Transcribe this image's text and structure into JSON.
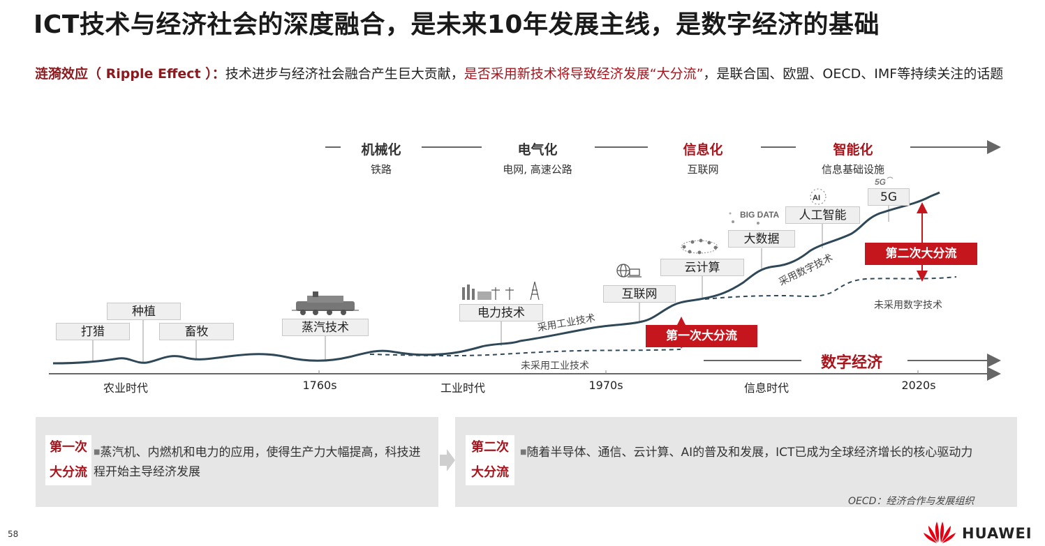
{
  "title": "ICT技术与经济社会的深度融合，是未来10年发展主线，是数字经济的基础",
  "subtitle": {
    "term": "涟漪效应（ Ripple Effect ）：",
    "text_a": "技术进步与经济社会融合产生巨大贡献，",
    "text_red": "是否采用新技术将导致经济发展“大分流”",
    "text_b": "，是联合国、欧盟、OECD、IMF等持续关注的话题"
  },
  "eras": [
    {
      "name": "机械化",
      "infra": "铁路"
    },
    {
      "name": "电气化",
      "infra": "电网, 高速公路"
    },
    {
      "name": "信息化",
      "infra": "互联网"
    },
    {
      "name": "智能化",
      "infra": "信息基础设施"
    }
  ],
  "tech_boxes": {
    "hunting": "打猎",
    "planting": "种植",
    "herding": "畜牧",
    "steam": "蒸汽技术",
    "power": "电力技术",
    "internet": "互联网",
    "cloud": "云计算",
    "bigdata": "大数据",
    "ai": "人工智能",
    "fiveg": "5G"
  },
  "icon_text": {
    "bigdata": "BIG DATA",
    "ai": "AI",
    "fiveg": "5G"
  },
  "curve_labels": {
    "adopt_industrial": "采用工业技术",
    "not_adopt_industrial": "未采用工业技术",
    "adopt_digital": "采用数字技术",
    "not_adopt_digital": "未采用数字技术"
  },
  "divergence": {
    "first": "第一次大分流",
    "second": "第二次大分流"
  },
  "digital_economy": "数字经济",
  "x_axis": [
    "农业时代",
    "1760s",
    "工业时代",
    "1970s",
    "信息时代",
    "2020s"
  ],
  "panels": [
    {
      "tag_line1": "第一次",
      "tag_line2": "大分流",
      "text": "蒸汽机、内燃机和电力的应用，使得生产力大幅提高，科技进程开始主导经济发展"
    },
    {
      "tag_line1": "第二次",
      "tag_line2": "大分流",
      "text": "随着半导体、通信、云计算、AI的普及和发展，ICT已成为全球经济增长的核心驱动力"
    }
  ],
  "oecd_note": "OECD：经济合作与发展组织",
  "page_number": "58",
  "brand": "HUAWEI",
  "colors": {
    "accent_red": "#c4161c",
    "dark_red_text": "#a8141c",
    "curve": "#2f4858",
    "panel_bg": "#e6e6e6"
  }
}
